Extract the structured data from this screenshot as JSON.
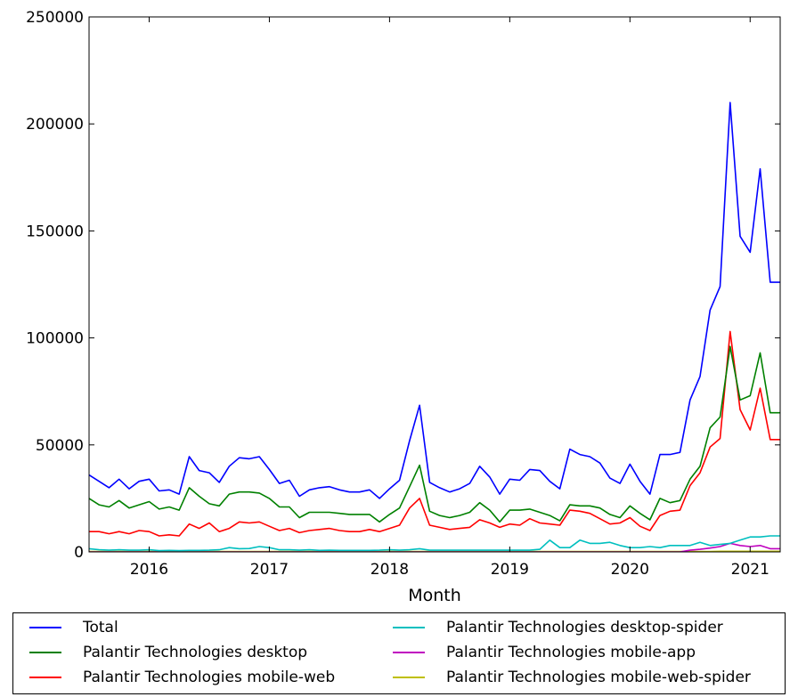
{
  "chart_data": {
    "type": "line",
    "xlabel": "Month",
    "ylabel": "",
    "xlim": [
      2015.5,
      2021.25
    ],
    "ylim": [
      0,
      250000
    ],
    "yticks": [
      0,
      50000,
      100000,
      150000,
      200000,
      250000
    ],
    "ytick_labels": [
      "0",
      "50000",
      "100000",
      "150000",
      "200000",
      "250000"
    ],
    "xticks": [
      2016,
      2017,
      2018,
      2019,
      2020,
      2021
    ],
    "xtick_labels": [
      "2016",
      "2017",
      "2018",
      "2019",
      "2020",
      "2021"
    ],
    "grid": false,
    "legend_position": "below",
    "x": [
      "2015-07",
      "2015-08",
      "2015-09",
      "2015-10",
      "2015-11",
      "2015-12",
      "2016-01",
      "2016-02",
      "2016-03",
      "2016-04",
      "2016-05",
      "2016-06",
      "2016-07",
      "2016-08",
      "2016-09",
      "2016-10",
      "2016-11",
      "2016-12",
      "2017-01",
      "2017-02",
      "2017-03",
      "2017-04",
      "2017-05",
      "2017-06",
      "2017-07",
      "2017-08",
      "2017-09",
      "2017-10",
      "2017-11",
      "2017-12",
      "2018-01",
      "2018-02",
      "2018-03",
      "2018-04",
      "2018-05",
      "2018-06",
      "2018-07",
      "2018-08",
      "2018-09",
      "2018-10",
      "2018-11",
      "2018-12",
      "2019-01",
      "2019-02",
      "2019-03",
      "2019-04",
      "2019-05",
      "2019-06",
      "2019-07",
      "2019-08",
      "2019-09",
      "2019-10",
      "2019-11",
      "2019-12",
      "2020-01",
      "2020-02",
      "2020-03",
      "2020-04",
      "2020-05",
      "2020-06",
      "2020-07",
      "2020-08",
      "2020-09",
      "2020-10",
      "2020-11",
      "2020-12",
      "2021-01",
      "2021-02",
      "2021-03",
      "2021-04"
    ],
    "series": [
      {
        "name": "Total",
        "color": "#0000ff",
        "values": [
          36000,
          33000,
          30000,
          34000,
          29500,
          33000,
          34000,
          28500,
          29000,
          27000,
          44500,
          38000,
          37000,
          32500,
          40000,
          44000,
          43500,
          44500,
          38500,
          32000,
          33500,
          26000,
          29000,
          30000,
          30500,
          29000,
          28000,
          28000,
          29000,
          25000,
          29500,
          33500,
          52000,
          68500,
          32500,
          30000,
          28000,
          29500,
          32000,
          40000,
          35000,
          27000,
          34000,
          33500,
          38500,
          38000,
          33000,
          29500,
          48000,
          45500,
          44500,
          41500,
          34500,
          32000,
          41000,
          33000,
          27000,
          45500,
          45500,
          46500,
          71000,
          82000,
          113000,
          124000,
          210000,
          147500,
          140000,
          179000,
          126000,
          126000
        ]
      },
      {
        "name": "Palantir Technologies desktop",
        "color": "#008000",
        "values": [
          25000,
          22000,
          21000,
          24000,
          20500,
          22000,
          23500,
          20000,
          21000,
          19500,
          30000,
          26000,
          22500,
          21500,
          27000,
          28000,
          28000,
          27500,
          25000,
          21000,
          21000,
          16000,
          18500,
          18500,
          18500,
          18000,
          17500,
          17500,
          17500,
          14000,
          17500,
          20500,
          30500,
          40500,
          19000,
          17000,
          16000,
          17000,
          18500,
          23000,
          19500,
          14000,
          19500,
          19500,
          20000,
          18500,
          17000,
          14500,
          22000,
          21500,
          21500,
          20500,
          17500,
          16000,
          21500,
          18000,
          15000,
          25000,
          23000,
          24000,
          34000,
          40000,
          58000,
          63000,
          96000,
          71000,
          73000,
          93000,
          65000,
          65000
        ]
      },
      {
        "name": "Palantir Technologies mobile-web",
        "color": "#ff0000",
        "values": [
          9500,
          9500,
          8500,
          9500,
          8500,
          10000,
          9500,
          7500,
          8000,
          7500,
          13000,
          11000,
          13500,
          9500,
          11000,
          14000,
          13500,
          14000,
          12000,
          10000,
          11000,
          9000,
          10000,
          10500,
          11000,
          10000,
          9500,
          9500,
          10500,
          9500,
          11000,
          12500,
          20500,
          25000,
          12500,
          11500,
          10500,
          11000,
          11500,
          15000,
          13500,
          11500,
          13000,
          12500,
          15500,
          13500,
          13000,
          12500,
          19500,
          19000,
          18000,
          15500,
          13000,
          13500,
          16000,
          12000,
          10000,
          17000,
          19000,
          19500,
          31000,
          37000,
          49000,
          53000,
          103000,
          66500,
          57000,
          76500,
          52500,
          52500
        ]
      },
      {
        "name": "Palantir Technologies desktop-spider",
        "color": "#00bfbf",
        "values": [
          1500,
          1000,
          800,
          1000,
          800,
          800,
          1000,
          600,
          700,
          600,
          700,
          700,
          800,
          1000,
          2000,
          1500,
          1600,
          2500,
          2000,
          1000,
          1000,
          800,
          1000,
          700,
          800,
          700,
          700,
          700,
          700,
          800,
          1000,
          800,
          1000,
          1500,
          800,
          800,
          800,
          800,
          800,
          800,
          800,
          800,
          800,
          800,
          800,
          1200,
          5500,
          2000,
          2000,
          5500,
          4000,
          4000,
          4500,
          3000,
          2000,
          2000,
          2500,
          2000,
          3000,
          3000,
          3000,
          4500,
          3000,
          3500,
          4000,
          5500,
          7000,
          7000,
          7500,
          7500
        ]
      },
      {
        "name": "Palantir Technologies mobile-app",
        "color": "#bf00bf",
        "values": [
          0,
          0,
          0,
          0,
          0,
          0,
          0,
          0,
          0,
          0,
          0,
          0,
          0,
          0,
          0,
          0,
          0,
          0,
          0,
          0,
          0,
          0,
          0,
          0,
          0,
          0,
          0,
          0,
          0,
          0,
          0,
          0,
          0,
          0,
          0,
          0,
          0,
          0,
          0,
          0,
          0,
          0,
          0,
          0,
          0,
          0,
          0,
          0,
          0,
          0,
          0,
          0,
          0,
          0,
          0,
          0,
          0,
          0,
          0,
          0,
          800,
          1200,
          1800,
          2500,
          4000,
          3000,
          2500,
          3000,
          1500,
          1500
        ]
      },
      {
        "name": "Palantir Technologies mobile-web-spider",
        "color": "#bfbf00",
        "values": [
          200,
          200,
          200,
          200,
          200,
          200,
          200,
          200,
          200,
          200,
          200,
          200,
          200,
          200,
          200,
          200,
          200,
          200,
          200,
          200,
          200,
          200,
          200,
          200,
          200,
          200,
          200,
          200,
          200,
          200,
          200,
          200,
          200,
          200,
          200,
          200,
          200,
          200,
          200,
          200,
          200,
          200,
          200,
          200,
          200,
          200,
          200,
          200,
          200,
          200,
          200,
          200,
          200,
          200,
          200,
          200,
          200,
          200,
          200,
          200,
          200,
          200,
          200,
          300,
          300,
          300,
          300,
          300,
          300,
          300
        ]
      }
    ]
  }
}
